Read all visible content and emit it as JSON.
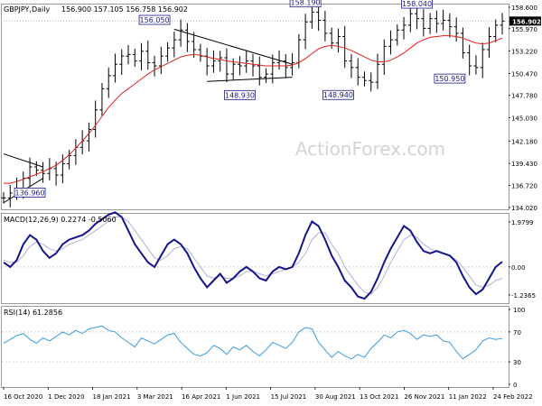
{
  "chart_data": [
    {
      "type": "line",
      "subtype": "candlestick-price",
      "title": "GBPJPY,Daily",
      "ohlc": [
        "156.900",
        "157.105",
        "156.758",
        "156.902"
      ],
      "current_price": "156.902",
      "watermark": "ActionForex.com",
      "y_ticks": [
        "158.600",
        "155.970",
        "153.220",
        "150.470",
        "147.780",
        "145.030",
        "142.180",
        "139.430",
        "136.720",
        "134.020"
      ],
      "ylim": [
        134.02,
        158.6
      ],
      "x_ticks": [
        "16 Oct 2020",
        "1 Dec 2020",
        "18 Jan 2021",
        "3 Mar 2021",
        "16 Apr 2021",
        "1 Jun 2021",
        "15 Jul 2021",
        "30 Aug 2021",
        "13 Oct 2021",
        "26 Nov 2021",
        "11 Jan 2022",
        "24 Feb 2022"
      ],
      "series": [
        {
          "values": [
            135.2,
            135.8,
            136.4,
            137.6,
            139.0,
            138.6,
            138.2,
            138.8,
            138.0,
            139.4,
            140.4,
            141.4,
            142.2,
            143.6,
            146.0,
            148.6,
            150.2,
            151.6,
            152.6,
            152.8,
            152.0,
            153.2,
            151.8,
            151.4,
            152.6,
            153.6,
            154.6,
            155.8,
            154.4,
            153.4,
            152.6,
            151.4,
            152.0,
            152.4,
            150.4,
            151.6,
            151.4,
            152.0,
            151.4,
            150.0,
            150.4,
            151.8,
            152.0,
            151.2,
            151.8,
            154.6,
            156.8,
            158.0,
            157.0,
            155.4,
            154.2,
            155.0,
            152.0,
            151.2,
            150.0,
            149.6,
            149.4,
            151.6,
            153.8,
            154.6,
            155.8,
            156.4,
            157.8,
            157.2,
            156.0,
            157.2,
            156.6,
            157.0,
            156.2,
            155.4,
            153.0,
            151.4,
            151.2,
            153.4,
            155.0,
            156.4,
            156.9
          ]
        },
        {
          "name": "moving average",
          "values": [
            137.0,
            137.0,
            137.2,
            137.5,
            137.8,
            138.1,
            138.4,
            138.8,
            139.2,
            139.8,
            140.5,
            141.3,
            142.2,
            143.1,
            144.1,
            145.2,
            146.3,
            147.2,
            148.0,
            148.6,
            149.2,
            149.8,
            150.4,
            150.9,
            151.3,
            151.7,
            152.1,
            152.5,
            152.7,
            152.8,
            152.7,
            152.5,
            152.3,
            152.2,
            152.0,
            151.9,
            151.8,
            151.7,
            151.6,
            151.5,
            151.4,
            151.4,
            151.4,
            151.4,
            151.5,
            151.8,
            152.3,
            152.9,
            153.5,
            153.8,
            153.9,
            153.8,
            153.6,
            153.3,
            152.9,
            152.5,
            152.1,
            151.9,
            151.9,
            152.1,
            152.5,
            153.0,
            153.6,
            154.2,
            154.6,
            154.9,
            155.0,
            155.1,
            155.1,
            155.0,
            154.8,
            154.5,
            154.2,
            154.1,
            154.2,
            154.5,
            154.8
          ]
        }
      ],
      "annotations": [
        "156.050",
        "158.190",
        "158.040",
        "136.960",
        "148.930",
        "148.940",
        "150.950"
      ]
    },
    {
      "type": "line",
      "title": "MACD(12,26,9) 0.2274 -0.5060",
      "y_ticks": [
        "1.9799",
        "0.00",
        "-1.2365"
      ],
      "zero_line": 0,
      "series": [
        {
          "values": [
            0.2,
            0.0,
            0.3,
            1.0,
            1.4,
            1.2,
            0.7,
            0.4,
            0.6,
            1.0,
            1.2,
            1.3,
            1.4,
            1.6,
            1.9,
            2.1,
            2.3,
            2.4,
            2.2,
            1.6,
            1.0,
            0.6,
            0.2,
            0.0,
            0.5,
            1.0,
            1.2,
            1.0,
            0.6,
            0.0,
            -0.5,
            -0.9,
            -0.6,
            -0.3,
            -0.7,
            -0.5,
            -0.2,
            0.0,
            -0.2,
            -0.5,
            -0.6,
            -0.2,
            0.0,
            -0.1,
            0.0,
            0.6,
            1.4,
            2.0,
            1.8,
            1.2,
            0.5,
            0.0,
            -0.6,
            -0.9,
            -1.3,
            -1.4,
            -1.1,
            -0.5,
            0.2,
            0.8,
            1.3,
            1.8,
            1.6,
            1.1,
            0.7,
            0.6,
            0.7,
            0.6,
            0.5,
            0.2,
            -0.4,
            -0.9,
            -1.2,
            -1.0,
            -0.5,
            0.0,
            0.23
          ]
        },
        {
          "values": [
            0.3,
            0.2,
            0.2,
            0.5,
            0.9,
            1.1,
            1.0,
            0.8,
            0.7,
            0.8,
            1.0,
            1.1,
            1.2,
            1.4,
            1.6,
            1.8,
            2.0,
            2.2,
            2.2,
            2.0,
            1.6,
            1.2,
            0.8,
            0.4,
            0.3,
            0.5,
            0.8,
            0.9,
            0.8,
            0.4,
            0.0,
            -0.4,
            -0.5,
            -0.4,
            -0.5,
            -0.5,
            -0.4,
            -0.2,
            -0.2,
            -0.3,
            -0.4,
            -0.3,
            -0.2,
            -0.1,
            0.0,
            0.2,
            0.6,
            1.2,
            1.5,
            1.5,
            1.0,
            0.6,
            0.0,
            -0.4,
            -0.8,
            -1.1,
            -1.2,
            -0.9,
            -0.4,
            0.2,
            0.7,
            1.2,
            1.4,
            1.3,
            1.0,
            0.8,
            0.7,
            0.6,
            0.5,
            0.3,
            0.0,
            -0.4,
            -0.8,
            -0.9,
            -0.8,
            -0.6,
            -0.5
          ]
        }
      ]
    },
    {
      "type": "line",
      "title": "RSI(14) 61.2856",
      "y_ticks": [
        "100",
        "70",
        "30",
        "0"
      ],
      "ylim": [
        0,
        100
      ],
      "levels": [
        70,
        30
      ],
      "series": [
        {
          "values": [
            55,
            60,
            65,
            68,
            60,
            55,
            62,
            58,
            64,
            70,
            66,
            72,
            68,
            74,
            76,
            78,
            72,
            70,
            62,
            56,
            50,
            62,
            58,
            54,
            60,
            66,
            68,
            56,
            48,
            40,
            38,
            42,
            52,
            48,
            40,
            50,
            46,
            52,
            44,
            38,
            46,
            56,
            52,
            48,
            56,
            70,
            76,
            74,
            56,
            46,
            36,
            44,
            38,
            34,
            40,
            36,
            48,
            56,
            66,
            62,
            70,
            72,
            68,
            60,
            66,
            64,
            66,
            58,
            56,
            44,
            34,
            40,
            46,
            58,
            62,
            60,
            61.29
          ]
        }
      ]
    }
  ]
}
